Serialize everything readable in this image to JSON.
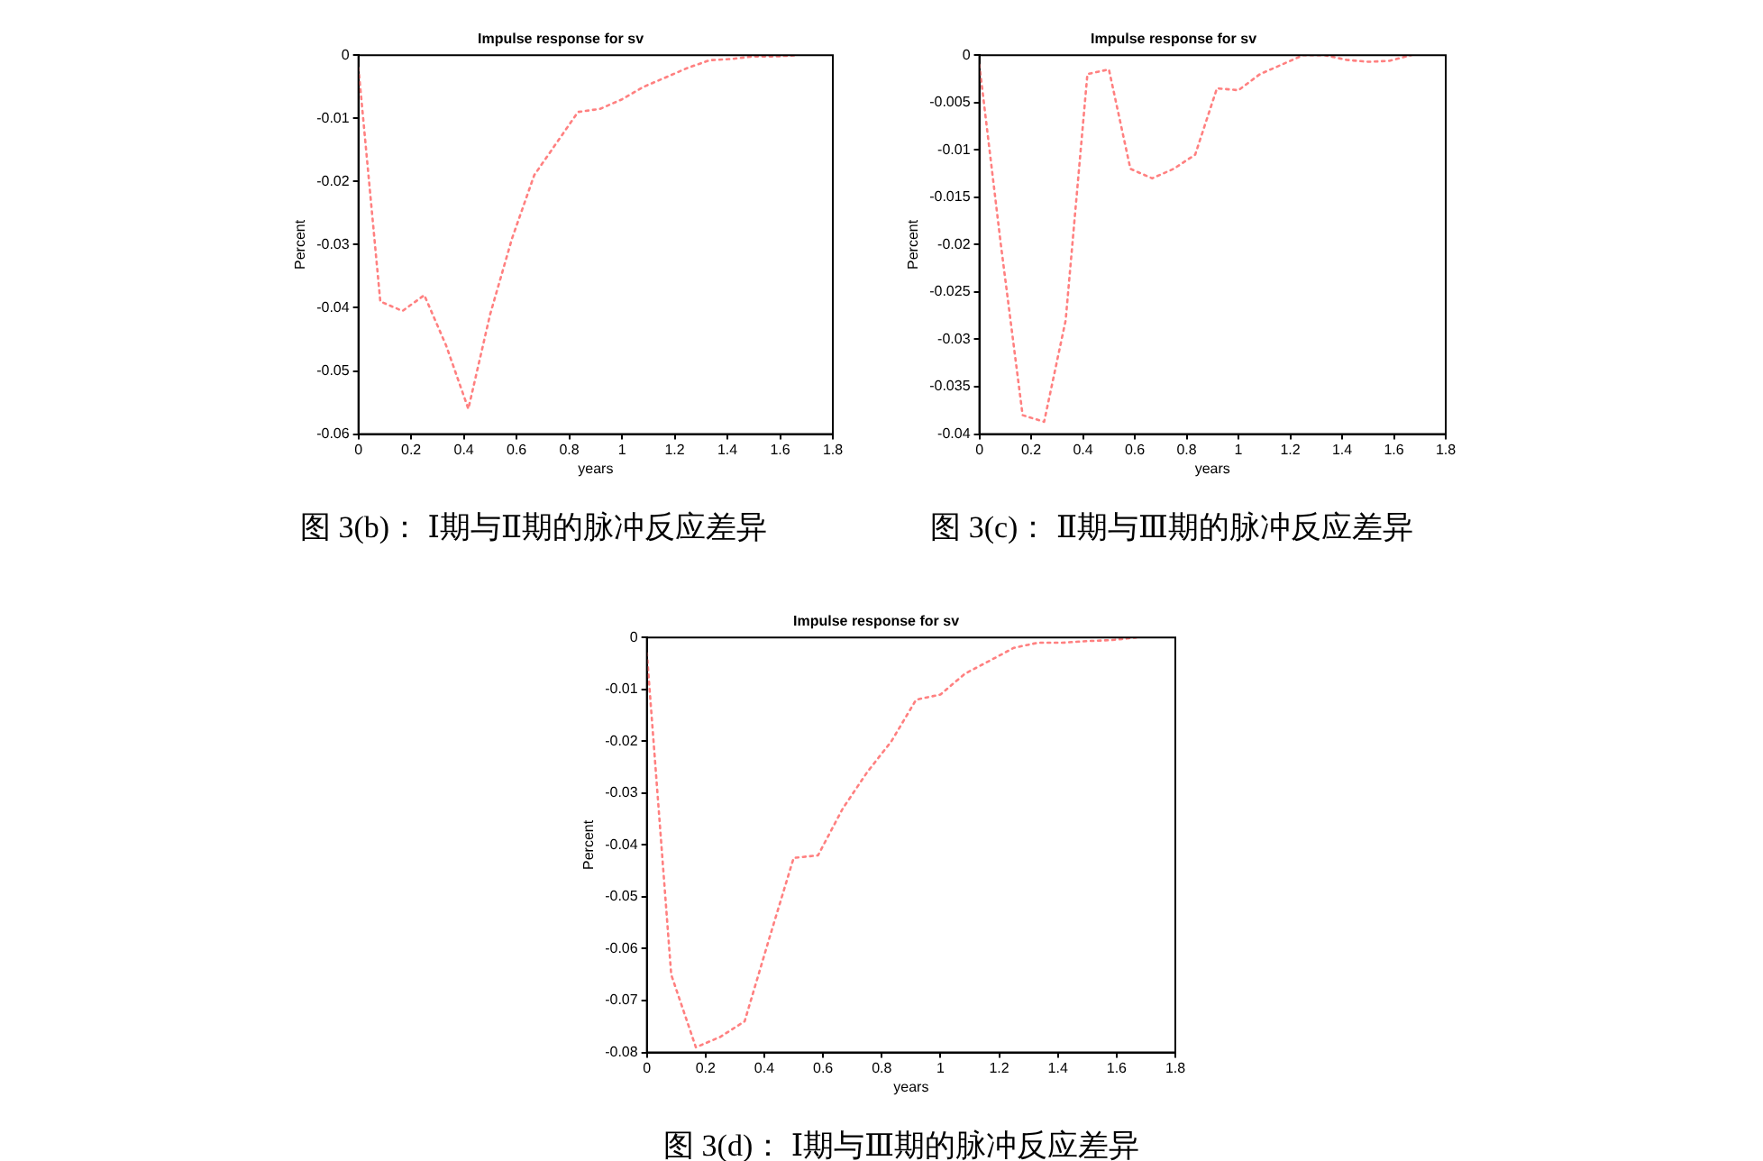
{
  "chart_data": [
    {
      "type": "line",
      "title": "Impulse response for sv",
      "xlabel": "years",
      "ylabel": "Percent",
      "annotations": [
        "图 3(b)： Ⅰ期与Ⅱ期的脉冲反应差异"
      ],
      "xlim": [
        0,
        1.8
      ],
      "xticks": [
        0,
        0.2,
        0.4,
        0.6,
        0.8,
        1,
        1.2,
        1.4,
        1.6,
        1.8
      ],
      "ylim": [
        -0.06,
        0
      ],
      "yticks": [
        -0.06,
        -0.05,
        -0.04,
        -0.03,
        -0.02,
        -0.01,
        0
      ],
      "grid": false,
      "legend": false,
      "marker": "none",
      "line_style": "dotted",
      "x": [
        0,
        0.083,
        0.167,
        0.25,
        0.333,
        0.417,
        0.5,
        0.583,
        0.667,
        0.75,
        0.833,
        0.917,
        1.0,
        1.083,
        1.167,
        1.25,
        1.333,
        1.417,
        1.5,
        1.583,
        1.667
      ],
      "series": [
        {
          "color": "#ff8080",
          "values": [
            -0.002,
            -0.039,
            -0.0405,
            -0.038,
            -0.046,
            -0.056,
            -0.041,
            -0.029,
            -0.019,
            -0.014,
            -0.009,
            -0.0085,
            -0.007,
            -0.005,
            -0.0035,
            -0.002,
            -0.0008,
            -0.0006,
            -0.0002,
            -0.0002,
            0
          ]
        }
      ]
    },
    {
      "type": "line",
      "title": "Impulse response for sv",
      "xlabel": "years",
      "ylabel": "Percent",
      "annotations": [
        "图 3(c)： Ⅱ期与Ⅲ期的脉冲反应差异"
      ],
      "xlim": [
        0,
        1.8
      ],
      "xticks": [
        0,
        0.2,
        0.4,
        0.6,
        0.8,
        1,
        1.2,
        1.4,
        1.6,
        1.8
      ],
      "ylim": [
        -0.04,
        0
      ],
      "yticks": [
        -0.04,
        -0.035,
        -0.03,
        -0.025,
        -0.02,
        -0.015,
        -0.01,
        -0.005,
        0
      ],
      "grid": false,
      "legend": false,
      "marker": "none",
      "line_style": "dotted",
      "x": [
        0,
        0.083,
        0.167,
        0.25,
        0.333,
        0.417,
        0.5,
        0.583,
        0.667,
        0.75,
        0.833,
        0.917,
        1.0,
        1.083,
        1.167,
        1.25,
        1.333,
        1.417,
        1.5,
        1.583,
        1.667
      ],
      "series": [
        {
          "color": "#ff8080",
          "values": [
            -0.001,
            -0.02,
            -0.038,
            -0.0387,
            -0.028,
            -0.002,
            -0.0015,
            -0.012,
            -0.013,
            -0.012,
            -0.0105,
            -0.0035,
            -0.0037,
            -0.002,
            -0.001,
            0,
            0,
            -0.0005,
            -0.0007,
            -0.0006,
            0
          ]
        }
      ]
    },
    {
      "type": "line",
      "title": "Impulse response for sv",
      "xlabel": "years",
      "ylabel": "Percent",
      "annotations": [
        "图 3(d)： Ⅰ期与Ⅲ期的脉冲反应差异"
      ],
      "xlim": [
        0,
        1.8
      ],
      "xticks": [
        0,
        0.2,
        0.4,
        0.6,
        0.8,
        1,
        1.2,
        1.4,
        1.6,
        1.8
      ],
      "ylim": [
        -0.08,
        0
      ],
      "yticks": [
        -0.08,
        -0.07,
        -0.06,
        -0.05,
        -0.04,
        -0.03,
        -0.02,
        -0.01,
        0
      ],
      "grid": false,
      "legend": false,
      "marker": "none",
      "line_style": "dotted",
      "x": [
        0,
        0.083,
        0.167,
        0.25,
        0.333,
        0.417,
        0.5,
        0.583,
        0.667,
        0.75,
        0.833,
        0.917,
        1.0,
        1.083,
        1.167,
        1.25,
        1.333,
        1.417,
        1.5,
        1.583,
        1.667
      ],
      "series": [
        {
          "color": "#ff8080",
          "values": [
            -0.003,
            -0.065,
            -0.079,
            -0.077,
            -0.074,
            -0.058,
            -0.0425,
            -0.042,
            -0.033,
            -0.026,
            -0.02,
            -0.012,
            -0.011,
            -0.007,
            -0.0045,
            -0.002,
            -0.001,
            -0.001,
            -0.0007,
            -0.0005,
            0
          ]
        }
      ]
    }
  ]
}
